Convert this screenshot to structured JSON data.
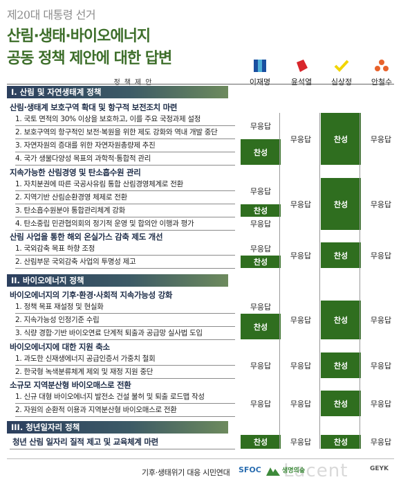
{
  "header": {
    "supertitle": "제20대 대통령 선거",
    "title_line1": "산림·생태·바이오에너지",
    "title_line2": "공동 정책 제안에 대한 답변"
  },
  "column_header": "정책제안",
  "candidates": [
    {
      "name": "이재명",
      "icon": "blue-square-icon",
      "color": "#1a4fa0"
    },
    {
      "name": "윤석열",
      "icon": "red-diamond-icon",
      "color": "#d8262b"
    },
    {
      "name": "심상정",
      "icon": "yellow-check-icon",
      "color": "#f2d500"
    },
    {
      "name": "안철수",
      "icon": "orange-dots-icon",
      "color": "#e8622b"
    }
  ],
  "sections": [
    {
      "title": "I. 산림 및 자연생태계 정책"
    },
    {
      "title": "II. 바이오에너지 정책"
    },
    {
      "title": "III. 청년일자리 정책"
    }
  ],
  "subsections": [
    "산림·생태계 보호구역 확대 및 항구적 보전조치 마련",
    "지속가능한 산림경영 및 탄소흡수원 관리",
    "산림 사업을 통한 해외 온실가스 감축 제도 개선",
    "바이오에너지의 기후·환경·사회적 지속가능성 강화",
    "바이오에너지에 대한 지원 축소",
    "소규모 지역분산형 바이오매스로 전환",
    "청년 산림 일자리 질적 제고 및 교육체계 마련"
  ],
  "items": [
    "1. 국토 면적의 30% 이상을 보호하고, 이를 주요 국정과제 설정",
    "2. 보호구역의 항구적인 보전·복원을 위한 제도 강화와 역내 개발 중단",
    "3. 자연자원의 증대를 위한 자연자원총량제 추진",
    "4. 국가 생물다양성 목표의 과학적·통합적 관리",
    "1. 자치분권에 따른 국공사유림 통합 산림경영체계로 전환",
    "2. 지역기반 산림순환경영 체제로 전환",
    "3. 탄소흡수원분야 통합관리체계 강화",
    "4. 탄소중립 민관협의회의 정기적 운영 및 합의안 이행과 평가",
    "1. 국외감축 목표 하향 조정",
    "2. 산림부문 국외감축 사업의 투명성 제고",
    "1. 정책 목표 재설정 및 현실화",
    "2. 지속가능성 인정기준 수립",
    "3. 식량 경합·기반 바이오연료 단계적 퇴출과 공급망 실사법 도입",
    "1. 과도한 신재생에너지 공급인증서 가중치 철회",
    "2. 한국형 녹색분류체계 제외 및 재정 지원 중단",
    "1. 신규 대형 바이오에너지 발전소 건설 불허 및 퇴출 로드맵 작성",
    "2. 자원의 순환적 이용과 지역분산형 바이오매스로 전환"
  ],
  "answers": {
    "no_answer": "무응답",
    "agree": "찬성"
  },
  "footer": {
    "org": "기후·생태위기 대응 시민연대",
    "logo1": "SFOC",
    "logo2": "생명의숲",
    "logo3": "GEYK",
    "watermark": "Lacent"
  }
}
